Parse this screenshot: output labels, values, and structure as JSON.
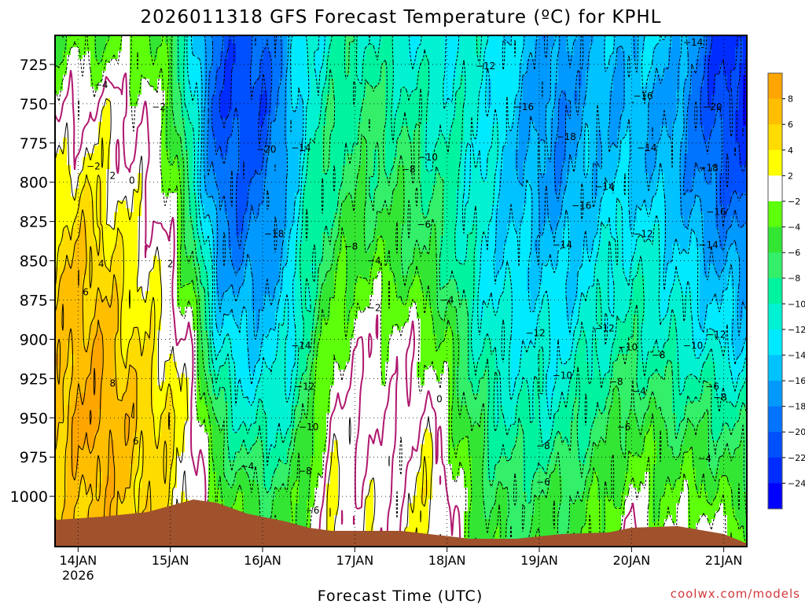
{
  "chart_data": {
    "type": "heatmap",
    "title": "2026011318 GFS Forecast Temperature (ºC) for KPHL",
    "xlabel": "Forecast Time (UTC)",
    "ylabel": "",
    "credit": "coolwx.com/models",
    "x_range_hours": [
      0,
      180
    ],
    "x_ticks": [
      {
        "label": "14JAN",
        "sub": "2026",
        "hour": 6
      },
      {
        "label": "15JAN",
        "sub": "",
        "hour": 30
      },
      {
        "label": "16JAN",
        "sub": "",
        "hour": 54
      },
      {
        "label": "17JAN",
        "sub": "",
        "hour": 78
      },
      {
        "label": "18JAN",
        "sub": "",
        "hour": 102
      },
      {
        "label": "19JAN",
        "sub": "",
        "hour": 126
      },
      {
        "label": "20JAN",
        "sub": "",
        "hour": 150
      },
      {
        "label": "21JAN",
        "sub": "",
        "hour": 174
      }
    ],
    "y_range_hpa": [
      706.5,
      1032
    ],
    "y_ticks": [
      725,
      750,
      775,
      800,
      825,
      850,
      875,
      900,
      925,
      950,
      975,
      1000
    ],
    "colorbar": {
      "levels": [
        8,
        6,
        4,
        2,
        -2,
        -4,
        -6,
        -8,
        -10,
        -12,
        -14,
        -16,
        -18,
        -20,
        -22,
        -24
      ],
      "colors": [
        "#ffa500",
        "#ffbe00",
        "#ffdc00",
        "#ffff00",
        "#ffffff",
        "#5dff0a",
        "#33e633",
        "#33ef6a",
        "#00f39f",
        "#00f2d2",
        "#00eaff",
        "#00c2ff",
        "#0099ff",
        "#0073ff",
        "#0050ff",
        "#002cff",
        "#0000ff"
      ]
    },
    "temperature_profiles": {
      "hours": [
        0,
        6,
        12,
        18,
        24,
        30,
        36,
        42,
        48,
        54,
        60,
        66,
        72,
        78,
        84,
        90,
        96,
        102,
        108,
        114,
        120,
        126,
        132,
        138,
        144,
        150,
        156,
        162,
        168,
        174,
        180
      ],
      "levels_hpa": [
        710,
        750,
        800,
        850,
        900,
        950,
        1000,
        1030
      ],
      "temps": [
        [
          -4,
          -1,
          3,
          5,
          6,
          7,
          5,
          5
        ],
        [
          -3,
          -1,
          3,
          6,
          7,
          8,
          6,
          6
        ],
        [
          -4,
          1,
          3,
          5,
          7,
          9,
          7,
          7
        ],
        [
          -3,
          0,
          1,
          3,
          5,
          7,
          6,
          6
        ],
        [
          -3,
          -1,
          0,
          2,
          3,
          5,
          5,
          5
        ],
        [
          -6,
          -4,
          -2,
          0,
          2,
          4,
          4,
          4
        ],
        [
          -13,
          -12,
          -10,
          -6,
          -2,
          1,
          1,
          1
        ],
        [
          -20,
          -21,
          -19,
          -16,
          -12,
          -7,
          -3,
          -3
        ],
        [
          -21,
          -22,
          -20,
          -18,
          -14,
          -10,
          -5,
          -4
        ],
        [
          -20,
          -21,
          -19,
          -17,
          -14,
          -11,
          -6,
          -5
        ],
        [
          -16,
          -17,
          -16,
          -15,
          -13,
          -10,
          -6,
          -5
        ],
        [
          -12,
          -11,
          -10,
          -9,
          -8,
          -6,
          -3,
          -2
        ],
        [
          -10,
          -9,
          -8,
          -6,
          -3,
          1,
          2,
          2
        ],
        [
          -9,
          -8,
          -7,
          -4,
          -1,
          0,
          1,
          1
        ],
        [
          -10,
          -8,
          -7,
          -4,
          -1,
          0,
          1,
          1
        ],
        [
          -11,
          -9,
          -7,
          -5,
          -1,
          -1,
          0,
          0
        ],
        [
          -12,
          -10,
          -8,
          -6,
          -2,
          1,
          3,
          3
        ],
        [
          -12,
          -11,
          -9,
          -8,
          -4,
          -2,
          1,
          1
        ],
        [
          -11,
          -11,
          -11,
          -11,
          -9,
          -6,
          -4,
          -3
        ],
        [
          -12,
          -13,
          -13,
          -13,
          -11,
          -9,
          -6,
          -5
        ],
        [
          -14,
          -15,
          -15,
          -14,
          -12,
          -10,
          -7,
          -6
        ],
        [
          -16,
          -17,
          -16,
          -14,
          -12,
          -10,
          -6,
          -5
        ],
        [
          -17,
          -18,
          -17,
          -15,
          -12,
          -10,
          -6,
          -5
        ],
        [
          -16,
          -16,
          -15,
          -13,
          -11,
          -8,
          -5,
          -4
        ],
        [
          -15,
          -16,
          -14,
          -12,
          -10,
          -7,
          -4,
          -2
        ],
        [
          -15,
          -16,
          -14,
          -11,
          -9,
          -5,
          -2,
          1
        ],
        [
          -14,
          -16,
          -15,
          -12,
          -10,
          -6,
          -3,
          -2
        ],
        [
          -15,
          -17,
          -16,
          -13,
          -11,
          -7,
          -3,
          -2
        ],
        [
          -19,
          -20,
          -18,
          -15,
          -12,
          -7,
          -3,
          1
        ],
        [
          -23,
          -22,
          -20,
          -16,
          -13,
          -8,
          -4,
          -2
        ],
        [
          -24,
          -23,
          -21,
          -17,
          -14,
          -9,
          -5,
          -3
        ]
      ]
    },
    "terrain_surface_hpa": [
      {
        "hour": 0,
        "p": 1015
      },
      {
        "hour": 12,
        "p": 1013
      },
      {
        "hour": 24,
        "p": 1010
      },
      {
        "hour": 36,
        "p": 1002
      },
      {
        "hour": 42,
        "p": 1004
      },
      {
        "hour": 50,
        "p": 1011
      },
      {
        "hour": 60,
        "p": 1016
      },
      {
        "hour": 66,
        "p": 1020
      },
      {
        "hour": 72,
        "p": 1022
      },
      {
        "hour": 90,
        "p": 1022
      },
      {
        "hour": 108,
        "p": 1027
      },
      {
        "hour": 120,
        "p": 1027
      },
      {
        "hour": 132,
        "p": 1024
      },
      {
        "hour": 144,
        "p": 1023
      },
      {
        "hour": 150,
        "p": 1020
      },
      {
        "hour": 162,
        "p": 1019
      },
      {
        "hour": 174,
        "p": 1024
      },
      {
        "hour": 180,
        "p": 1030
      }
    ],
    "contour_labels": [
      {
        "text": "-4",
        "hour": 12,
        "p": 738
      },
      {
        "text": "-2",
        "hour": 27,
        "p": 752
      },
      {
        "text": "-2",
        "hour": 10,
        "p": 790
      },
      {
        "text": "2",
        "hour": 15,
        "p": 796
      },
      {
        "text": "0",
        "hour": 20,
        "p": 799
      },
      {
        "text": "4",
        "hour": 12,
        "p": 852
      },
      {
        "text": "2",
        "hour": 30,
        "p": 852
      },
      {
        "text": "6",
        "hour": 8,
        "p": 870
      },
      {
        "text": "8",
        "hour": 15,
        "p": 928
      },
      {
        "text": "6",
        "hour": 21,
        "p": 965
      },
      {
        "text": "-20",
        "hour": 55,
        "p": 779
      },
      {
        "text": "-14",
        "hour": 64,
        "p": 778
      },
      {
        "text": "-18",
        "hour": 57,
        "p": 833
      },
      {
        "text": "-14",
        "hour": 64,
        "p": 904
      },
      {
        "text": "-12",
        "hour": 65,
        "p": 930
      },
      {
        "text": "-10",
        "hour": 66,
        "p": 956
      },
      {
        "text": "-8",
        "hour": 65,
        "p": 984
      },
      {
        "text": "-6",
        "hour": 67,
        "p": 1009
      },
      {
        "text": "-4",
        "hour": 50,
        "p": 981
      },
      {
        "text": "-12",
        "hour": 112,
        "p": 726
      },
      {
        "text": "-16",
        "hour": 122,
        "p": 752
      },
      {
        "text": "-10",
        "hour": 97,
        "p": 784
      },
      {
        "text": "-8",
        "hour": 92,
        "p": 792
      },
      {
        "text": "-6",
        "hour": 96,
        "p": 827
      },
      {
        "text": "-8",
        "hour": 77,
        "p": 841
      },
      {
        "text": "-4",
        "hour": 83,
        "p": 850
      },
      {
        "text": "-4",
        "hour": 102,
        "p": 875
      },
      {
        "text": "-2",
        "hour": 83,
        "p": 880
      },
      {
        "text": "0",
        "hour": 100,
        "p": 938
      },
      {
        "text": "-18",
        "hour": 133,
        "p": 771
      },
      {
        "text": "-16",
        "hour": 137,
        "p": 815
      },
      {
        "text": "-14",
        "hour": 132,
        "p": 840
      },
      {
        "text": "-14",
        "hour": 143,
        "p": 803
      },
      {
        "text": "-16",
        "hour": 153,
        "p": 745
      },
      {
        "text": "-14",
        "hour": 154,
        "p": 778
      },
      {
        "text": "-12",
        "hour": 153,
        "p": 833
      },
      {
        "text": "-12",
        "hour": 125,
        "p": 896
      },
      {
        "text": "-12",
        "hour": 143,
        "p": 893
      },
      {
        "text": "-10",
        "hour": 132,
        "p": 923
      },
      {
        "text": "-10",
        "hour": 149,
        "p": 905
      },
      {
        "text": "-8",
        "hour": 157,
        "p": 910
      },
      {
        "text": "-8",
        "hour": 146,
        "p": 927
      },
      {
        "text": "-4",
        "hour": 152,
        "p": 933
      },
      {
        "text": "-6",
        "hour": 148,
        "p": 956
      },
      {
        "text": "-8",
        "hour": 127,
        "p": 968
      },
      {
        "text": "-6",
        "hour": 127,
        "p": 991
      },
      {
        "text": "-14",
        "hour": 166,
        "p": 711
      },
      {
        "text": "-20",
        "hour": 171,
        "p": 752
      },
      {
        "text": "-18",
        "hour": 170,
        "p": 791
      },
      {
        "text": "-16",
        "hour": 172,
        "p": 819
      },
      {
        "text": "-14",
        "hour": 170,
        "p": 840
      },
      {
        "text": "-12",
        "hour": 172,
        "p": 897
      },
      {
        "text": "-10",
        "hour": 166,
        "p": 904
      },
      {
        "text": "-6",
        "hour": 171,
        "p": 930
      },
      {
        "text": "-8",
        "hour": 173,
        "p": 937
      },
      {
        "text": "-4",
        "hour": 169,
        "p": 976
      }
    ]
  }
}
